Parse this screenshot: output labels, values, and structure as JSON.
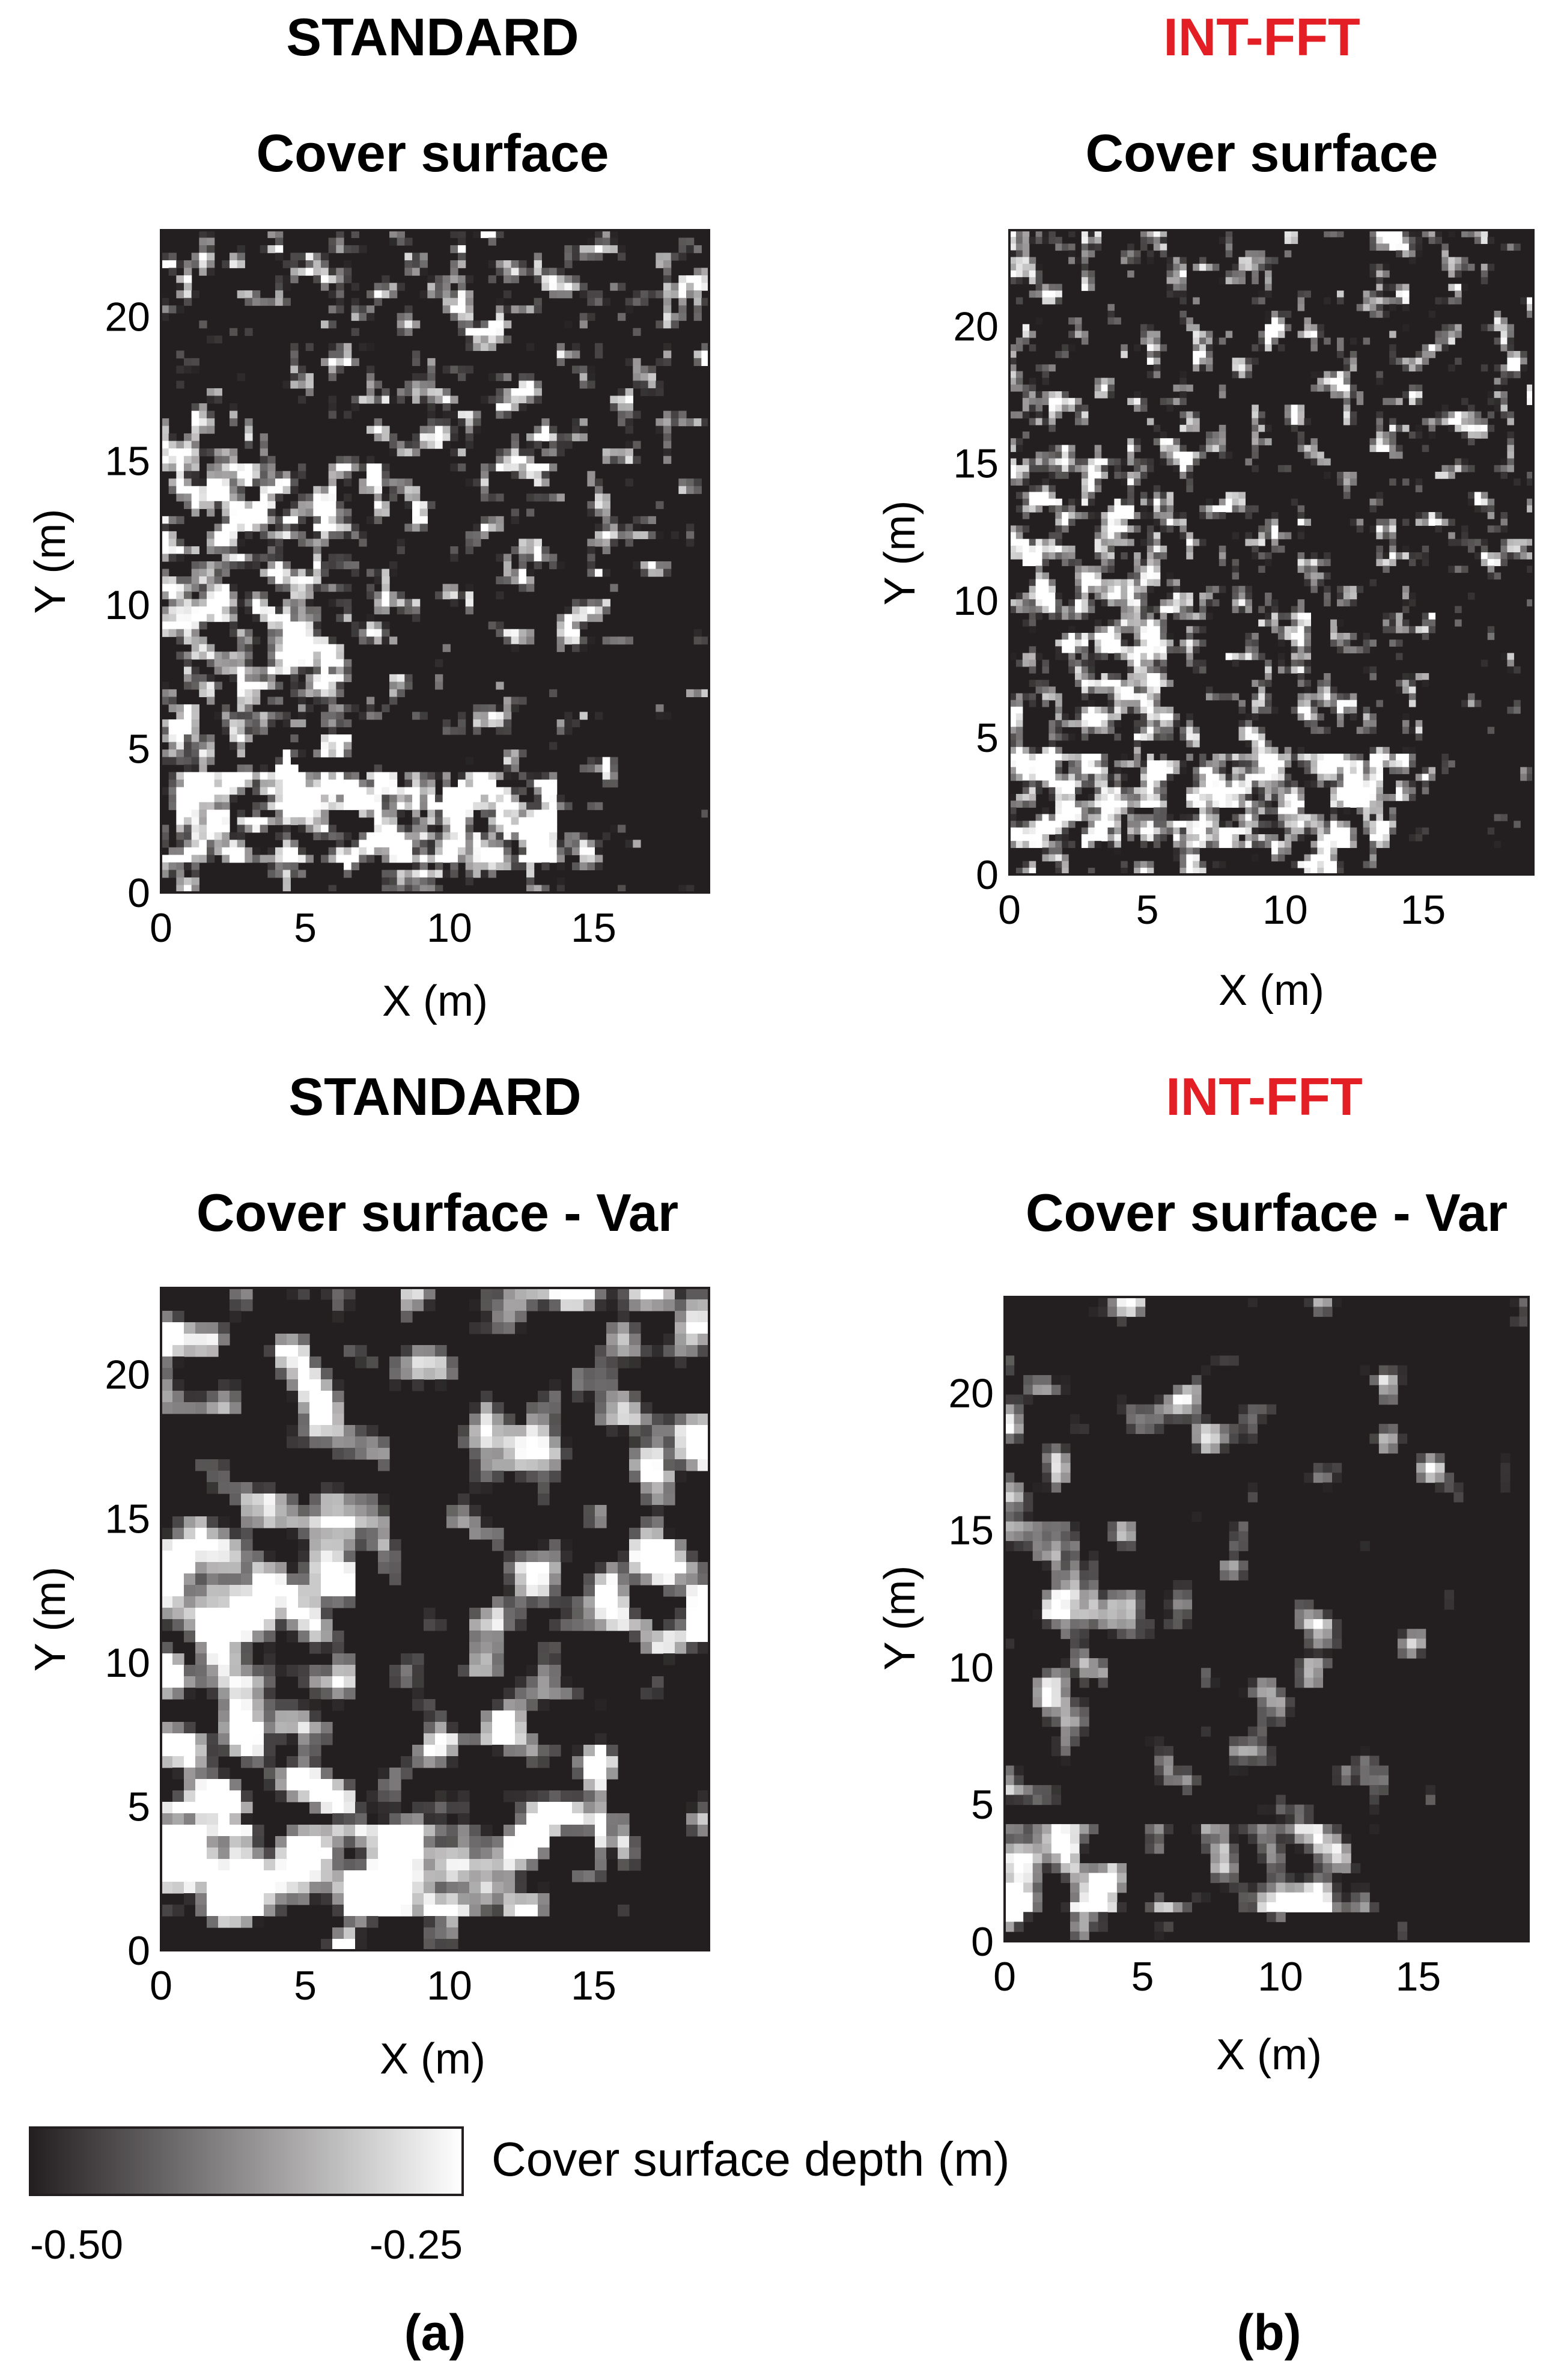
{
  "colors": {
    "text": "#231f20",
    "accent": "#e31e24",
    "dark": "#231f20",
    "light": "#ffffff"
  },
  "chart_data": [
    {
      "type": "heatmap",
      "method_label": "STANDARD",
      "title": "Cover surface",
      "xlabel": "X (m)",
      "ylabel": "Y (m)",
      "xlim": [
        0,
        19
      ],
      "ylim": [
        0,
        23
      ],
      "xticks": [
        0,
        5,
        10,
        15
      ],
      "yticks": [
        0,
        5,
        10,
        15,
        20
      ],
      "xtick_labels": [
        "0",
        "5",
        "10",
        "15"
      ],
      "ytick_labels": [
        "0",
        "5",
        "10",
        "15",
        "20"
      ],
      "seed": 11,
      "nx": 72,
      "ny": 88,
      "threshold": 0.58
    },
    {
      "type": "heatmap",
      "method_label": "INT-FFT",
      "title": "Cover surface",
      "xlabel": "X (m)",
      "ylabel": "Y (m)",
      "xlim": [
        0,
        19
      ],
      "ylim": [
        0,
        23.5
      ],
      "xticks": [
        0,
        5,
        10,
        15
      ],
      "yticks": [
        0,
        5,
        10,
        15,
        20
      ],
      "xtick_labels": [
        "0",
        "5",
        "10",
        "15"
      ],
      "ytick_labels": [
        "0",
        "5",
        "10",
        "15",
        "20"
      ],
      "seed": 29,
      "nx": 80,
      "ny": 96,
      "threshold": 0.62
    },
    {
      "type": "heatmap",
      "method_label": "STANDARD",
      "title": "Cover surface - Var",
      "xlabel": "X (m)",
      "ylabel": "Y (m)",
      "xlim": [
        0,
        19
      ],
      "ylim": [
        0,
        23
      ],
      "xticks": [
        0,
        5,
        10,
        15
      ],
      "yticks": [
        0,
        5,
        10,
        15,
        20
      ],
      "xtick_labels": [
        "0",
        "5",
        "10",
        "15"
      ],
      "ytick_labels": [
        "0",
        "5",
        "10",
        "15",
        "20"
      ],
      "seed": 47,
      "nx": 48,
      "ny": 58,
      "threshold": 0.52
    },
    {
      "type": "heatmap",
      "method_label": "INT-FFT",
      "title": "Cover surface - Var",
      "xlabel": "X (m)",
      "ylabel": "Y (m)",
      "xlim": [
        0,
        19
      ],
      "ylim": [
        0,
        23.5
      ],
      "xticks": [
        0,
        5,
        10,
        15
      ],
      "yticks": [
        0,
        5,
        10,
        15,
        20
      ],
      "xtick_labels": [
        "0",
        "5",
        "10",
        "15"
      ],
      "ytick_labels": [
        "0",
        "5",
        "10",
        "15",
        "20"
      ],
      "seed": 83,
      "nx": 56,
      "ny": 66,
      "threshold": 0.6
    }
  ],
  "colorbar": {
    "label": "Cover surface depth (m)",
    "min_label": "-0.50",
    "max_label": "-0.25",
    "range": [
      -0.5,
      -0.25
    ]
  },
  "panel_labels": [
    "(a)",
    "(b)"
  ]
}
